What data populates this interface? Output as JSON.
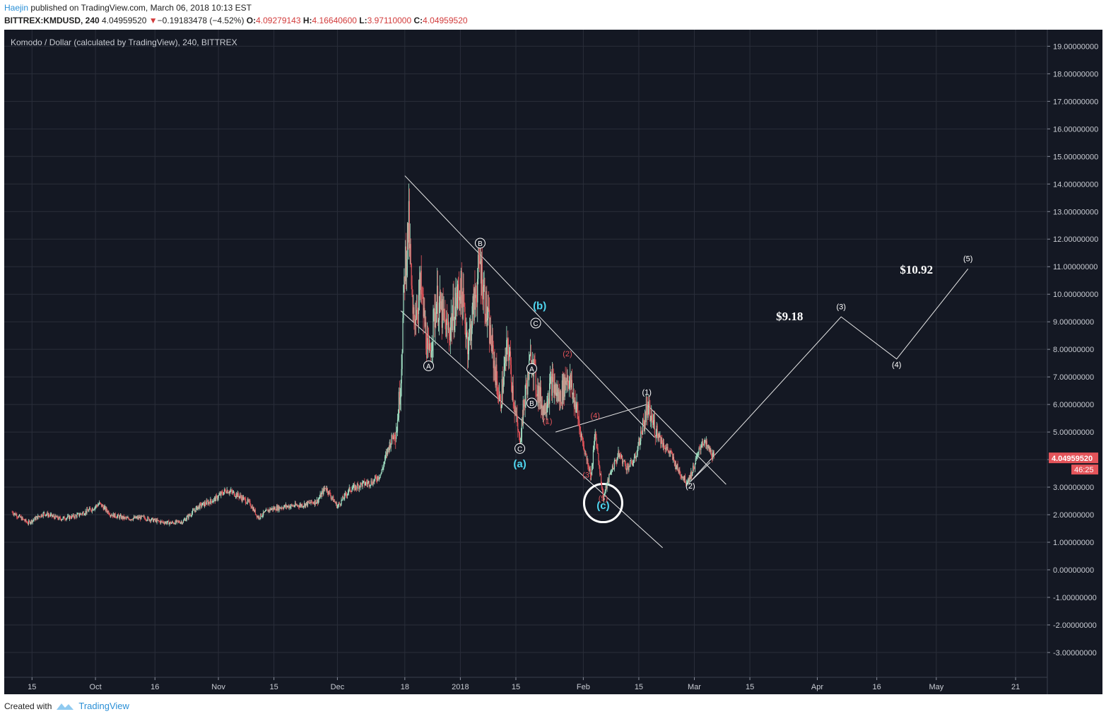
{
  "header": {
    "user": "Haejin",
    "published": " published on TradingView.com, March 06, 2018 10:13 EST",
    "symbol": "BITTREX:KMDUSD, 240",
    "last": "4.04959520",
    "arrow": "▼",
    "change": "−0.19183478 (−4.52%)",
    "o_label": "O:",
    "o_val": "4.09279143",
    "h_label": "H:",
    "h_val": "4.16640600",
    "l_label": "L:",
    "l_val": "3.97110000",
    "c_label": "C:",
    "c_val": "4.04959520"
  },
  "footer": {
    "created_with": "Created with",
    "brand": "TradingView"
  },
  "colors": {
    "bg": "#141823",
    "grid": "#2a2e3a",
    "up": "#a3e3c6",
    "down": "#e4545a",
    "cyan": "#4fd6f0",
    "wave_red": "#e4545a",
    "white": "#ffffff",
    "price_tag": "#e4545a"
  },
  "chart_data": {
    "type": "candlestick",
    "title": "Komodo / Dollar (calculated by TradingView), 240, BITTREX",
    "y_ticks": [
      "19.00000000",
      "18.00000000",
      "17.00000000",
      "16.00000000",
      "15.00000000",
      "14.00000000",
      "13.00000000",
      "12.00000000",
      "11.00000000",
      "10.00000000",
      "9.00000000",
      "8.00000000",
      "7.00000000",
      "6.00000000",
      "5.00000000",
      "4.00000000",
      "3.00000000",
      "2.00000000",
      "1.00000000",
      "0.00000000",
      "-1.00000000",
      "-2.00000000",
      "-3.00000000"
    ],
    "ylim": [
      -3.9,
      19.6
    ],
    "x_ticks": [
      "15",
      "Oct",
      "16",
      "Nov",
      "15",
      "Dec",
      "18",
      "2018",
      "15",
      "Feb",
      "15",
      "Mar",
      "15",
      "Apr",
      "16",
      "May",
      "21"
    ],
    "x_tick_dates": [
      "2017-09-15",
      "2017-10-01",
      "2017-10-16",
      "2017-11-01",
      "2017-11-15",
      "2017-12-01",
      "2017-12-18",
      "2018-01-01",
      "2018-01-15",
      "2018-02-01",
      "2018-02-15",
      "2018-03-01",
      "2018-03-15",
      "2018-04-01",
      "2018-04-16",
      "2018-05-01",
      "2018-05-21"
    ],
    "price_series": [
      [
        "2017-09-10",
        2.1
      ],
      [
        "2017-09-14",
        1.7
      ],
      [
        "2017-09-18",
        2.05
      ],
      [
        "2017-09-22",
        1.85
      ],
      [
        "2017-09-26",
        1.95
      ],
      [
        "2017-09-30",
        2.2
      ],
      [
        "2017-10-02",
        2.4
      ],
      [
        "2017-10-05",
        2.0
      ],
      [
        "2017-10-09",
        1.85
      ],
      [
        "2017-10-13",
        1.9
      ],
      [
        "2017-10-17",
        1.75
      ],
      [
        "2017-10-20",
        1.7
      ],
      [
        "2017-10-23",
        1.75
      ],
      [
        "2017-10-27",
        2.3
      ],
      [
        "2017-10-31",
        2.55
      ],
      [
        "2017-11-03",
        2.9
      ],
      [
        "2017-11-06",
        2.7
      ],
      [
        "2017-11-09",
        2.4
      ],
      [
        "2017-11-11",
        1.9
      ],
      [
        "2017-11-14",
        2.2
      ],
      [
        "2017-11-18",
        2.3
      ],
      [
        "2017-11-22",
        2.35
      ],
      [
        "2017-11-26",
        2.5
      ],
      [
        "2017-11-28",
        3.0
      ],
      [
        "2017-12-01",
        2.3
      ],
      [
        "2017-12-04",
        2.9
      ],
      [
        "2017-12-07",
        3.1
      ],
      [
        "2017-12-10",
        3.2
      ],
      [
        "2017-12-12",
        3.5
      ],
      [
        "2017-12-14",
        4.5
      ],
      [
        "2017-12-16",
        5.2
      ],
      [
        "2017-12-17",
        7.0
      ],
      [
        "2017-12-18",
        11.0
      ],
      [
        "2017-12-19",
        12.5
      ],
      [
        "2017-12-20",
        9.0
      ],
      [
        "2017-12-22",
        10.2
      ],
      [
        "2017-12-24",
        7.6
      ],
      [
        "2017-12-26",
        9.8
      ],
      [
        "2017-12-29",
        8.6
      ],
      [
        "2018-01-01",
        10.3
      ],
      [
        "2018-01-03",
        8.2
      ],
      [
        "2018-01-06",
        11.2
      ],
      [
        "2018-01-07",
        10.0
      ],
      [
        "2018-01-09",
        8.0
      ],
      [
        "2018-01-11",
        6.0
      ],
      [
        "2018-01-13",
        8.2
      ],
      [
        "2018-01-15",
        5.5
      ],
      [
        "2018-01-16",
        4.6
      ],
      [
        "2018-01-17",
        6.0
      ],
      [
        "2018-01-19",
        7.9
      ],
      [
        "2018-01-20",
        6.8
      ],
      [
        "2018-01-22",
        5.8
      ],
      [
        "2018-01-24",
        6.8
      ],
      [
        "2018-01-26",
        6.2
      ],
      [
        "2018-01-28",
        7.1
      ],
      [
        "2018-01-30",
        6.0
      ],
      [
        "2018-02-01",
        4.5
      ],
      [
        "2018-02-03",
        3.4
      ],
      [
        "2018-02-04",
        5.0
      ],
      [
        "2018-02-06",
        2.6
      ],
      [
        "2018-02-08",
        3.6
      ],
      [
        "2018-02-10",
        4.2
      ],
      [
        "2018-02-12",
        3.7
      ],
      [
        "2018-02-14",
        4.0
      ],
      [
        "2018-02-16",
        5.2
      ],
      [
        "2018-02-17",
        5.8
      ],
      [
        "2018-02-19",
        5.2
      ],
      [
        "2018-02-21",
        4.6
      ],
      [
        "2018-02-23",
        4.2
      ],
      [
        "2018-02-25",
        3.6
      ],
      [
        "2018-02-27",
        3.2
      ],
      [
        "2018-02-28",
        3.4
      ],
      [
        "2018-03-02",
        4.2
      ],
      [
        "2018-03-03",
        4.7
      ],
      [
        "2018-03-05",
        4.3
      ],
      [
        "2018-03-06",
        4.05
      ]
    ],
    "channel_lines": [
      [
        [
          "2017-12-18",
          14.3
        ],
        [
          "2018-02-19",
          4.8
        ]
      ],
      [
        [
          "2017-12-17",
          9.4
        ],
        [
          "2018-02-21",
          0.8
        ]
      ],
      [
        [
          "2018-02-17",
          6.0
        ],
        [
          "2018-03-09",
          3.1
        ]
      ],
      [
        [
          "2018-01-25",
          5.0
        ],
        [
          "2018-02-17",
          6.0
        ]
      ],
      [
        [
          "2018-02-28",
          3.2
        ],
        [
          "2018-03-05",
          3.9
        ]
      ]
    ],
    "projection": [
      [
        "2018-02-28",
        3.2
      ],
      [
        "2018-04-07",
        9.18
      ],
      [
        "2018-04-21",
        7.65
      ],
      [
        "2018-05-09",
        10.92
      ]
    ],
    "circle_marker": {
      "x": "2018-02-06",
      "y": 2.5
    },
    "labels": [
      {
        "text": "B",
        "x": "2018-01-06",
        "y": 11.75,
        "style": "circled"
      },
      {
        "text": "A",
        "x": "2017-12-24",
        "y": 7.3,
        "style": "circled"
      },
      {
        "text": "C",
        "x": "2018-01-16",
        "y": 4.3,
        "style": "circled"
      },
      {
        "text": "A",
        "x": "2018-01-19",
        "y": 7.2,
        "style": "circled"
      },
      {
        "text": "B",
        "x": "2018-01-19",
        "y": 5.95,
        "style": "circled"
      },
      {
        "text": "C",
        "x": "2018-01-20",
        "y": 8.85,
        "style": "circled"
      },
      {
        "text": "(a)",
        "x": "2018-01-16",
        "y": 3.72,
        "style": "cyan"
      },
      {
        "text": "(b)",
        "x": "2018-01-21",
        "y": 9.45,
        "style": "cyan"
      },
      {
        "text": "(c)",
        "x": "2018-02-06",
        "y": 2.2,
        "style": "cyan"
      },
      {
        "text": "(1)",
        "x": "2018-01-23",
        "y": 5.3,
        "style": "red"
      },
      {
        "text": "(2)",
        "x": "2018-01-28",
        "y": 7.75,
        "style": "red"
      },
      {
        "text": "(3)",
        "x": "2018-02-02",
        "y": 3.35,
        "style": "red"
      },
      {
        "text": "(4)",
        "x": "2018-02-04",
        "y": 5.5,
        "style": "red"
      },
      {
        "text": "(5)",
        "x": "2018-02-06",
        "y": 2.5,
        "style": "red"
      },
      {
        "text": "(1)",
        "x": "2018-02-17",
        "y": 6.35,
        "style": "white"
      },
      {
        "text": "(2)",
        "x": "2018-02-28",
        "y": 2.95,
        "style": "white"
      },
      {
        "text": "(3)",
        "x": "2018-04-07",
        "y": 9.45,
        "style": "white"
      },
      {
        "text": "(4)",
        "x": "2018-04-21",
        "y": 7.35,
        "style": "white"
      },
      {
        "text": "(5)",
        "x": "2018-05-09",
        "y": 11.2,
        "style": "white"
      },
      {
        "text": "$9.18",
        "x": "2018-03-25",
        "y": 9.05,
        "style": "big"
      },
      {
        "text": "$10.92",
        "x": "2018-04-26",
        "y": 10.75,
        "style": "big"
      }
    ],
    "last_price_label": "4.04959520",
    "countdown_label": "46:25",
    "last_price": 4.0495952
  }
}
